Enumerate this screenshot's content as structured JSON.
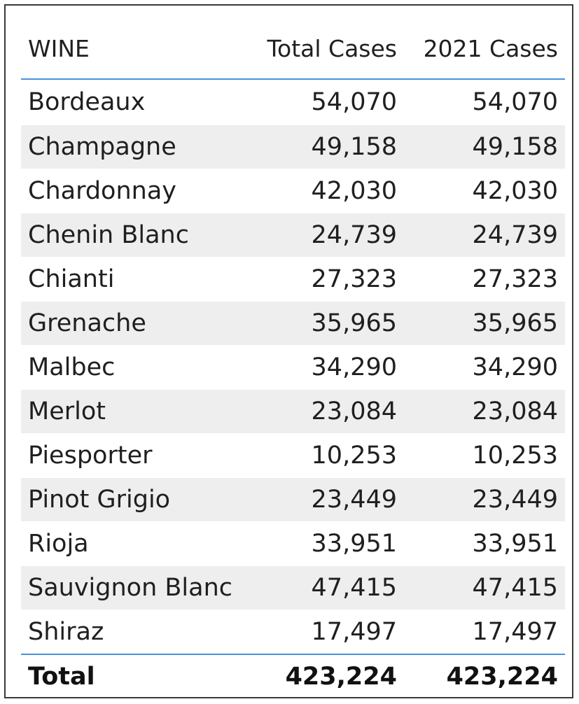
{
  "table": {
    "columns": [
      "WINE",
      "Total Cases",
      "2021 Cases"
    ],
    "rows": [
      {
        "wine": "Bordeaux",
        "total_cases": "54,070",
        "cases_2021": "54,070"
      },
      {
        "wine": "Champagne",
        "total_cases": "49,158",
        "cases_2021": "49,158"
      },
      {
        "wine": "Chardonnay",
        "total_cases": "42,030",
        "cases_2021": "42,030"
      },
      {
        "wine": "Chenin Blanc",
        "total_cases": "24,739",
        "cases_2021": "24,739"
      },
      {
        "wine": "Chianti",
        "total_cases": "27,323",
        "cases_2021": "27,323"
      },
      {
        "wine": "Grenache",
        "total_cases": "35,965",
        "cases_2021": "35,965"
      },
      {
        "wine": "Malbec",
        "total_cases": "34,290",
        "cases_2021": "34,290"
      },
      {
        "wine": "Merlot",
        "total_cases": "23,084",
        "cases_2021": "23,084"
      },
      {
        "wine": "Piesporter",
        "total_cases": "10,253",
        "cases_2021": "10,253"
      },
      {
        "wine": "Pinot Grigio",
        "total_cases": "23,449",
        "cases_2021": "23,449"
      },
      {
        "wine": "Rioja",
        "total_cases": "33,951",
        "cases_2021": "33,951"
      },
      {
        "wine": "Sauvignon Blanc",
        "total_cases": "47,415",
        "cases_2021": "47,415"
      },
      {
        "wine": "Shiraz",
        "total_cases": "17,497",
        "cases_2021": "17,497"
      }
    ],
    "total": {
      "label": "Total",
      "total_cases": "423,224",
      "cases_2021": "423,224"
    }
  },
  "colors": {
    "header_rule": "#4a90d9",
    "banded_row": "#eeeeee",
    "frame_border": "#3a3a3a"
  }
}
